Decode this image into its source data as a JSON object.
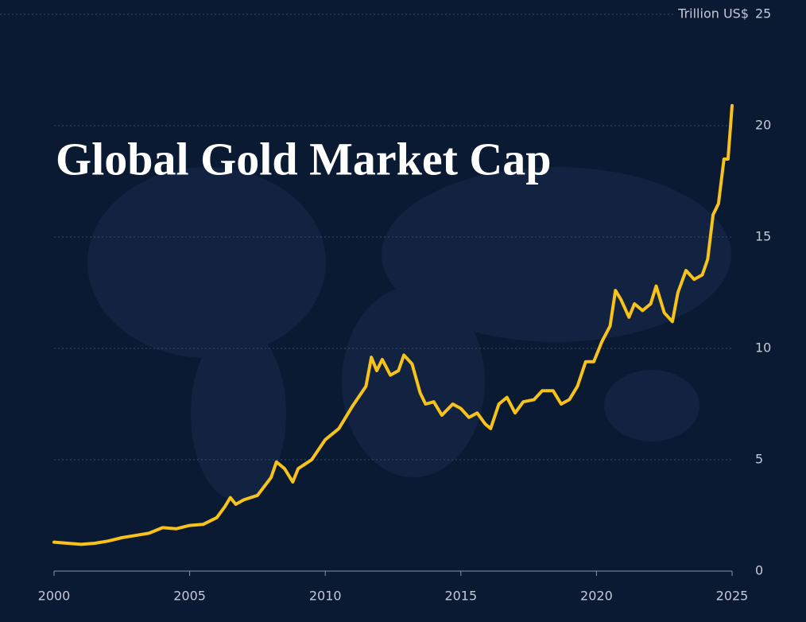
{
  "chart_data": {
    "type": "line",
    "title": "Global Gold Market Cap",
    "y_unit_label": "Trillion US$",
    "x": [
      2000.0,
      2000.5,
      2001.0,
      2001.5,
      2002.0,
      2002.5,
      2003.0,
      2003.5,
      2004.0,
      2004.5,
      2005.0,
      2005.5,
      2006.0,
      2006.3,
      2006.5,
      2006.7,
      2007.0,
      2007.5,
      2008.0,
      2008.2,
      2008.5,
      2008.8,
      2009.0,
      2009.5,
      2010.0,
      2010.5,
      2011.0,
      2011.5,
      2011.7,
      2011.9,
      2012.1,
      2012.4,
      2012.7,
      2012.9,
      2013.2,
      2013.5,
      2013.7,
      2014.0,
      2014.3,
      2014.7,
      2015.0,
      2015.3,
      2015.6,
      2015.9,
      2016.1,
      2016.4,
      2016.7,
      2017.0,
      2017.3,
      2017.7,
      2018.0,
      2018.4,
      2018.7,
      2019.0,
      2019.3,
      2019.6,
      2019.9,
      2020.2,
      2020.5,
      2020.7,
      2020.9,
      2021.2,
      2021.4,
      2021.7,
      2022.0,
      2022.2,
      2022.5,
      2022.8,
      2023.0,
      2023.3,
      2023.6,
      2023.9,
      2024.1,
      2024.3,
      2024.5,
      2024.7,
      2024.85,
      2025.0
    ],
    "values": [
      1.3,
      1.25,
      1.2,
      1.25,
      1.35,
      1.5,
      1.6,
      1.7,
      1.95,
      1.9,
      2.05,
      2.1,
      2.4,
      2.9,
      3.3,
      3.0,
      3.2,
      3.4,
      4.2,
      4.9,
      4.6,
      4.0,
      4.6,
      5.0,
      5.9,
      6.4,
      7.4,
      8.3,
      9.6,
      9.0,
      9.5,
      8.8,
      9.0,
      9.7,
      9.3,
      8.0,
      7.5,
      7.6,
      7.0,
      7.5,
      7.3,
      6.9,
      7.1,
      6.6,
      6.4,
      7.5,
      7.8,
      7.1,
      7.6,
      7.7,
      8.1,
      8.1,
      7.5,
      7.7,
      8.3,
      9.4,
      9.4,
      10.3,
      11.0,
      12.6,
      12.2,
      11.4,
      12.0,
      11.7,
      12.0,
      12.8,
      11.6,
      11.2,
      12.5,
      13.5,
      13.1,
      13.3,
      14.0,
      16.0,
      16.5,
      18.5,
      18.5,
      20.9
    ],
    "color": "#f7c31a",
    "xlim": [
      2000,
      2025
    ],
    "xticks": [
      2000,
      2005,
      2010,
      2015,
      2020,
      2025
    ],
    "ylim": [
      0,
      25
    ],
    "yticks": [
      0,
      5,
      10,
      15,
      20,
      25
    ],
    "grid": true
  }
}
